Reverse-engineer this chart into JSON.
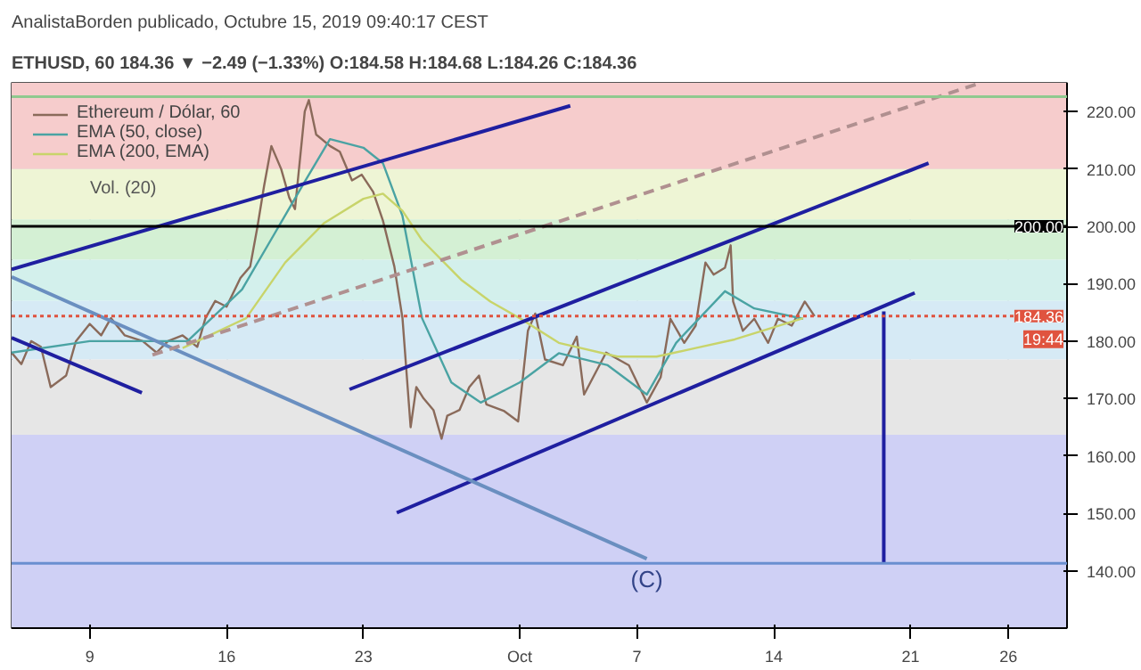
{
  "chart_data": {
    "type": "line",
    "title": "AnalistaBorden publicado, Octubre 15, 2019 09:40:17 CEST",
    "subtitle": "ETHUSD, 60  184.36 ▼ −2.49 (−1.33%) O:184.58 H:184.68 L:184.26 C:184.36",
    "xlim": [
      "2019-09-05",
      "2019-10-29"
    ],
    "xticks": [
      {
        "value": "2019-09-09",
        "label": "9"
      },
      {
        "value": "2019-09-16",
        "label": "16"
      },
      {
        "value": "2019-09-23",
        "label": "23"
      },
      {
        "value": "2019-10-01",
        "label": "Oct"
      },
      {
        "value": "2019-10-07",
        "label": "7"
      },
      {
        "value": "2019-10-14",
        "label": "14"
      },
      {
        "value": "2019-10-21",
        "label": "21"
      },
      {
        "value": "2019-10-26",
        "label": "26"
      }
    ],
    "ylim": [
      130,
      225
    ],
    "yticks": [
      {
        "value": 140,
        "label": "140.00"
      },
      {
        "value": 150,
        "label": "150.00"
      },
      {
        "value": 160,
        "label": "160.00"
      },
      {
        "value": 170,
        "label": "170.00"
      },
      {
        "value": 180,
        "label": "180.00"
      },
      {
        "value": 190,
        "label": "190.00"
      },
      {
        "value": 200,
        "label": "200.00"
      },
      {
        "value": 210,
        "label": "210.00"
      },
      {
        "value": 220,
        "label": "220.00"
      }
    ],
    "grid": true,
    "legend": "top left",
    "bands": [
      {
        "axis": "y",
        "from": 210,
        "to": 225,
        "color": "#f6cccc"
      },
      {
        "axis": "y",
        "from": 201.2,
        "to": 210,
        "color": "#eef5d5"
      },
      {
        "axis": "y",
        "from": 194.2,
        "to": 201.2,
        "color": "#d4f0d4"
      },
      {
        "axis": "y",
        "from": 187,
        "to": 194.2,
        "color": "#d3f0ec"
      },
      {
        "axis": "y",
        "from": 176.8,
        "to": 187,
        "color": "#d6eaf5"
      },
      {
        "axis": "y",
        "from": 163.7,
        "to": 176.8,
        "color": "#e6e6e6"
      },
      {
        "axis": "y",
        "from": 130,
        "to": 163.7,
        "color": "#cfd0f5"
      }
    ],
    "ref_lines": [
      {
        "axis": "y",
        "value": 222.6,
        "color": "#8fc98f",
        "line_style": "solid"
      },
      {
        "axis": "y",
        "value": 141.3,
        "color": "#6a8fd0",
        "line_style": "solid"
      },
      {
        "axis": "y",
        "value": 200,
        "label": "200.00",
        "color": "#000000",
        "line_style": "solid"
      },
      {
        "axis": "y",
        "value": 184.36,
        "label": "184.36",
        "color": "#e0533f",
        "line_style": "dotted"
      }
    ],
    "annotations": [
      {
        "text": "(C)",
        "x": "2019-10-07T12:00",
        "y": 142.1
      },
      "Vol. (20)",
      "19:44"
    ],
    "series": [
      {
        "name": "Ethereum / Dólar, 60",
        "type": "line",
        "color": "#8a6a5a",
        "x": [
          "2019-09-05T00:00",
          "2019-09-05T12:00",
          "2019-09-06T00:00",
          "2019-09-06T12:00",
          "2019-09-07T00:00",
          "2019-09-07T19:00",
          "2019-09-08T07:00",
          "2019-09-09T00:00",
          "2019-09-09T14:00",
          "2019-09-10T02:00",
          "2019-09-10T19:00",
          "2019-09-11T17:00",
          "2019-09-12T10:00",
          "2019-09-13T00:00",
          "2019-09-13T18:00",
          "2019-09-14T12:00",
          "2019-09-14T22:00",
          "2019-09-15T10:00",
          "2019-09-16T00:00",
          "2019-09-16T17:00",
          "2019-09-17T05:00",
          "2019-09-17T14:00",
          "2019-09-17T22:00",
          "2019-09-18T07:00",
          "2019-09-18T19:00",
          "2019-09-19T05:00",
          "2019-09-19T12:00",
          "2019-09-20T00:00",
          "2019-09-20T05:00",
          "2019-09-20T14:00",
          "2019-09-21T07:00",
          "2019-09-21T19:00",
          "2019-09-22T10:00",
          "2019-09-22T22:00",
          "2019-09-23T12:00",
          "2019-09-24T00:00",
          "2019-09-24T14:00",
          "2019-09-25T00:00",
          "2019-09-25T10:00",
          "2019-09-25T17:00",
          "2019-09-26T02:00",
          "2019-09-26T14:00",
          "2019-09-27T00:00",
          "2019-09-27T07:00",
          "2019-09-27T22:00",
          "2019-09-28T10:00",
          "2019-09-28T22:00",
          "2019-09-29T07:00",
          "2019-09-30T05:00",
          "2019-09-30T22:00",
          "2019-10-01T10:00",
          "2019-10-01T19:00",
          "2019-10-02T07:00",
          "2019-10-03T05:00",
          "2019-10-03T22:00",
          "2019-10-04T07:00",
          "2019-10-05T10:00",
          "2019-10-06T14:00",
          "2019-10-07T12:00",
          "2019-10-08T05:00",
          "2019-10-08T17:00",
          "2019-10-09T10:00",
          "2019-10-10T00:00",
          "2019-10-10T12:00",
          "2019-10-10T22:00",
          "2019-10-11T12:00",
          "2019-10-11T19:00",
          "2019-10-11T22:00",
          "2019-10-12T10:00",
          "2019-10-13T00:00",
          "2019-10-13T17:00",
          "2019-10-14T05:00",
          "2019-10-14T22:00",
          "2019-10-15T14:00",
          "2019-10-16T02:00"
        ],
        "values": [
          178,
          176,
          180,
          179,
          172,
          174,
          180,
          183,
          181,
          184,
          181,
          180,
          178,
          180,
          181,
          179,
          184,
          187,
          186,
          191,
          193,
          200,
          207,
          214,
          210,
          205,
          203,
          220,
          222,
          216,
          214,
          213,
          208,
          209,
          206,
          201,
          193,
          184,
          165,
          172,
          170,
          168,
          163,
          167,
          168,
          172,
          174,
          169,
          167.8,
          166,
          181.8,
          184.8,
          176.8,
          175.8,
          180.8,
          170.7,
          178,
          175.8,
          169.3,
          173.7,
          183.9,
          179.7,
          182.7,
          193.7,
          191.6,
          192.8,
          196.7,
          186.9,
          181.8,
          183.9,
          179.7,
          183.9,
          182.7,
          186.9,
          184.36
        ]
      },
      {
        "name": "EMA (50, close)",
        "type": "line",
        "color": "#4aa3a3",
        "x": [
          "2019-09-05",
          "2019-09-09",
          "2019-09-12",
          "2019-09-14",
          "2019-09-16T19:00",
          "2019-09-18T12:00",
          "2019-09-20",
          "2019-09-21T07:00",
          "2019-09-23",
          "2019-09-24",
          "2019-09-25",
          "2019-09-26",
          "2019-09-27T12:00",
          "2019-09-29",
          "2019-10-01",
          "2019-10-03",
          "2019-10-05T12:00",
          "2019-10-07T12:00",
          "2019-10-09",
          "2019-10-11T12:00",
          "2019-10-13",
          "2019-10-15T12:00"
        ],
        "values": [
          178,
          180,
          180,
          180,
          189,
          199,
          207.8,
          215.2,
          213.7,
          211,
          201.8,
          184,
          172.8,
          169.3,
          172.8,
          177.9,
          175.8,
          170.7,
          179.7,
          188.7,
          185.7,
          183.9
        ]
      },
      {
        "name": "EMA (200, EMA)",
        "type": "line",
        "color": "#c8d46a",
        "x": [
          "2019-09-13T18:00",
          "2019-09-17",
          "2019-09-19",
          "2019-09-21",
          "2019-09-23",
          "2019-09-24",
          "2019-09-25",
          "2019-09-26",
          "2019-09-28",
          "2019-09-29T12:00",
          "2019-10-01",
          "2019-10-03",
          "2019-10-06",
          "2019-10-08",
          "2019-10-10",
          "2019-10-12",
          "2019-10-15T12:00"
        ],
        "values": [
          178.8,
          184,
          193.7,
          200.6,
          204.8,
          205.7,
          202.7,
          197.6,
          190.7,
          186.9,
          184,
          179.7,
          177.3,
          177.3,
          178.8,
          180.3,
          184
        ]
      },
      {
        "type": "line",
        "color": "#1f1fa0",
        "x": [
          "2019-09-05",
          "2019-10-03T14:00"
        ],
        "values": [
          192.5,
          221
        ]
      },
      {
        "type": "line",
        "color": "#1f1fa0",
        "x": [
          "2019-09-05",
          "2019-09-11T16:00"
        ],
        "values": [
          180.6,
          171
        ]
      },
      {
        "type": "line",
        "color": "#1f1fa0",
        "x": [
          "2019-09-22T07:00",
          "2019-10-21T22:00"
        ],
        "values": [
          171.6,
          211
        ]
      },
      {
        "type": "line",
        "color": "#1f1fa0",
        "x": [
          "2019-09-24T17:00",
          "2019-10-21T05:00"
        ],
        "values": [
          150.1,
          188.4
        ]
      },
      {
        "type": "line",
        "color": "#1f1fa0",
        "x": [
          "2019-10-19T15:00",
          "2019-10-19T15:00"
        ],
        "values": [
          185.2,
          141.3
        ]
      },
      {
        "type": "line",
        "color": "#6a8fc0",
        "x": [
          "2019-09-05",
          "2019-10-07T12:00"
        ],
        "values": [
          191.2,
          142.1
        ]
      },
      {
        "type": "line",
        "color": "#b09090",
        "line_style": "dashed",
        "x": [
          "2019-09-12T05:00",
          "2019-10-24T10:00"
        ],
        "values": [
          177.6,
          224.8
        ]
      }
    ]
  }
}
